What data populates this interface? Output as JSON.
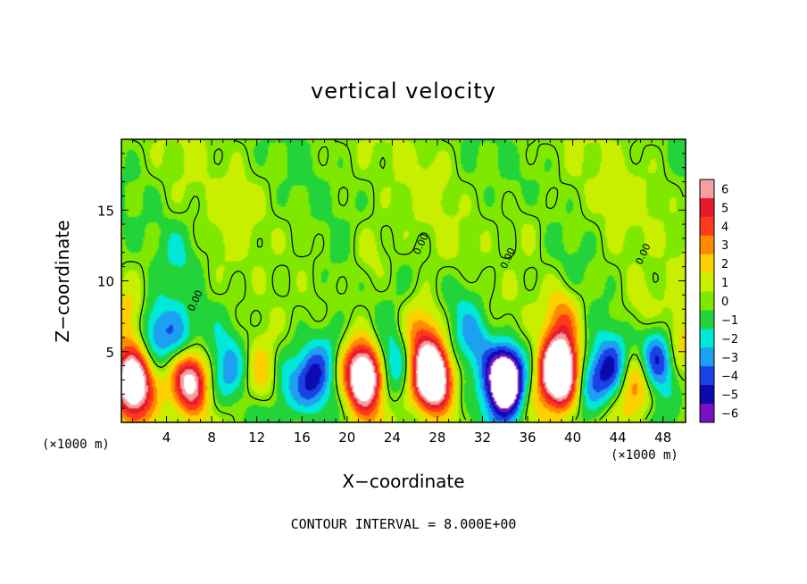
{
  "chart_data": {
    "type": "heatmap",
    "title": "vertical velocity",
    "xlabel": "X−coordinate",
    "ylabel": "Z−coordinate",
    "x_unit": "(×1000 m)",
    "xlim": [
      0,
      50
    ],
    "ylim": [
      0,
      20
    ],
    "x_ticks": [
      4,
      8,
      12,
      16,
      20,
      24,
      28,
      32,
      36,
      40,
      44,
      48
    ],
    "y_ticks": [
      5,
      10,
      15
    ],
    "colorbar": {
      "levels": [
        6,
        5,
        4,
        3,
        2,
        1,
        0,
        -1,
        -2,
        -3,
        -4,
        -5,
        -6
      ],
      "labels": [
        "6",
        "5",
        "4",
        "3",
        "2",
        "1",
        "0",
        "−1",
        "−2",
        "−3",
        "−4",
        "−5",
        "−6"
      ],
      "colors": [
        "#f4a0a0",
        "#e81a2a",
        "#ff3a1a",
        "#ff8a00",
        "#ffd000",
        "#c8ee00",
        "#7ee800",
        "#22d43a",
        "#00e8d8",
        "#1ea0f0",
        "#1a42e8",
        "#0a0ab0",
        "#7a10c0"
      ]
    },
    "contour_label": "0.00",
    "footer": "CONTOUR INTERVAL = 8.000E+00",
    "features": [
      {
        "x": 1.0,
        "z": 2.8,
        "w": 9.5
      },
      {
        "x": 6.0,
        "z": 3.0,
        "w": 8.0
      },
      {
        "x": 5.2,
        "z": 5.5,
        "w": -3.5
      },
      {
        "x": 3.0,
        "z": 6.5,
        "w": -3.0
      },
      {
        "x": 0.8,
        "z": 7.5,
        "w": 2.0
      },
      {
        "x": 12.5,
        "z": 3.0,
        "w": 2.8
      },
      {
        "x": 9.5,
        "z": 3.5,
        "w": -2.5
      },
      {
        "x": 14.5,
        "z": 2.5,
        "w": -2.0
      },
      {
        "x": 17.0,
        "z": 3.0,
        "w": -5.0
      },
      {
        "x": 18.5,
        "z": 5.5,
        "w": -2.0
      },
      {
        "x": 21.5,
        "z": 3.3,
        "w": 10.0
      },
      {
        "x": 24.0,
        "z": 4.0,
        "w": -2.8
      },
      {
        "x": 27.5,
        "z": 3.2,
        "w": 13.0
      },
      {
        "x": 26.5,
        "z": 6.5,
        "w": 3.0
      },
      {
        "x": 30.0,
        "z": 9.0,
        "w": -1.5
      },
      {
        "x": 34.0,
        "z": 3.0,
        "w": -12.0
      },
      {
        "x": 31.5,
        "z": 6.0,
        "w": -3.0
      },
      {
        "x": 38.8,
        "z": 3.6,
        "w": 12.0
      },
      {
        "x": 39.0,
        "z": 7.5,
        "w": 3.0
      },
      {
        "x": 41.5,
        "z": 3.0,
        "w": -3.0
      },
      {
        "x": 43.5,
        "z": 3.5,
        "w": -4.0
      },
      {
        "x": 45.5,
        "z": 2.5,
        "w": 4.5
      },
      {
        "x": 47.5,
        "z": 4.5,
        "w": -5.0
      },
      {
        "x": 49.5,
        "z": 5.5,
        "w": 2.5
      },
      {
        "x": 22.0,
        "z": 12.0,
        "w": 1.2
      },
      {
        "x": 10.0,
        "z": 15.0,
        "w": 0.8
      },
      {
        "x": 36.0,
        "z": 14.0,
        "w": 0.9
      },
      {
        "x": 44.0,
        "z": 16.0,
        "w": 0.7
      },
      {
        "x": 5.0,
        "z": 12.0,
        "w": -1.0
      },
      {
        "x": 15.0,
        "z": 10.0,
        "w": -0.7
      },
      {
        "x": 28.0,
        "z": 17.0,
        "w": 0.6
      },
      {
        "x": 46.0,
        "z": 8.0,
        "w": 1.2
      }
    ]
  }
}
